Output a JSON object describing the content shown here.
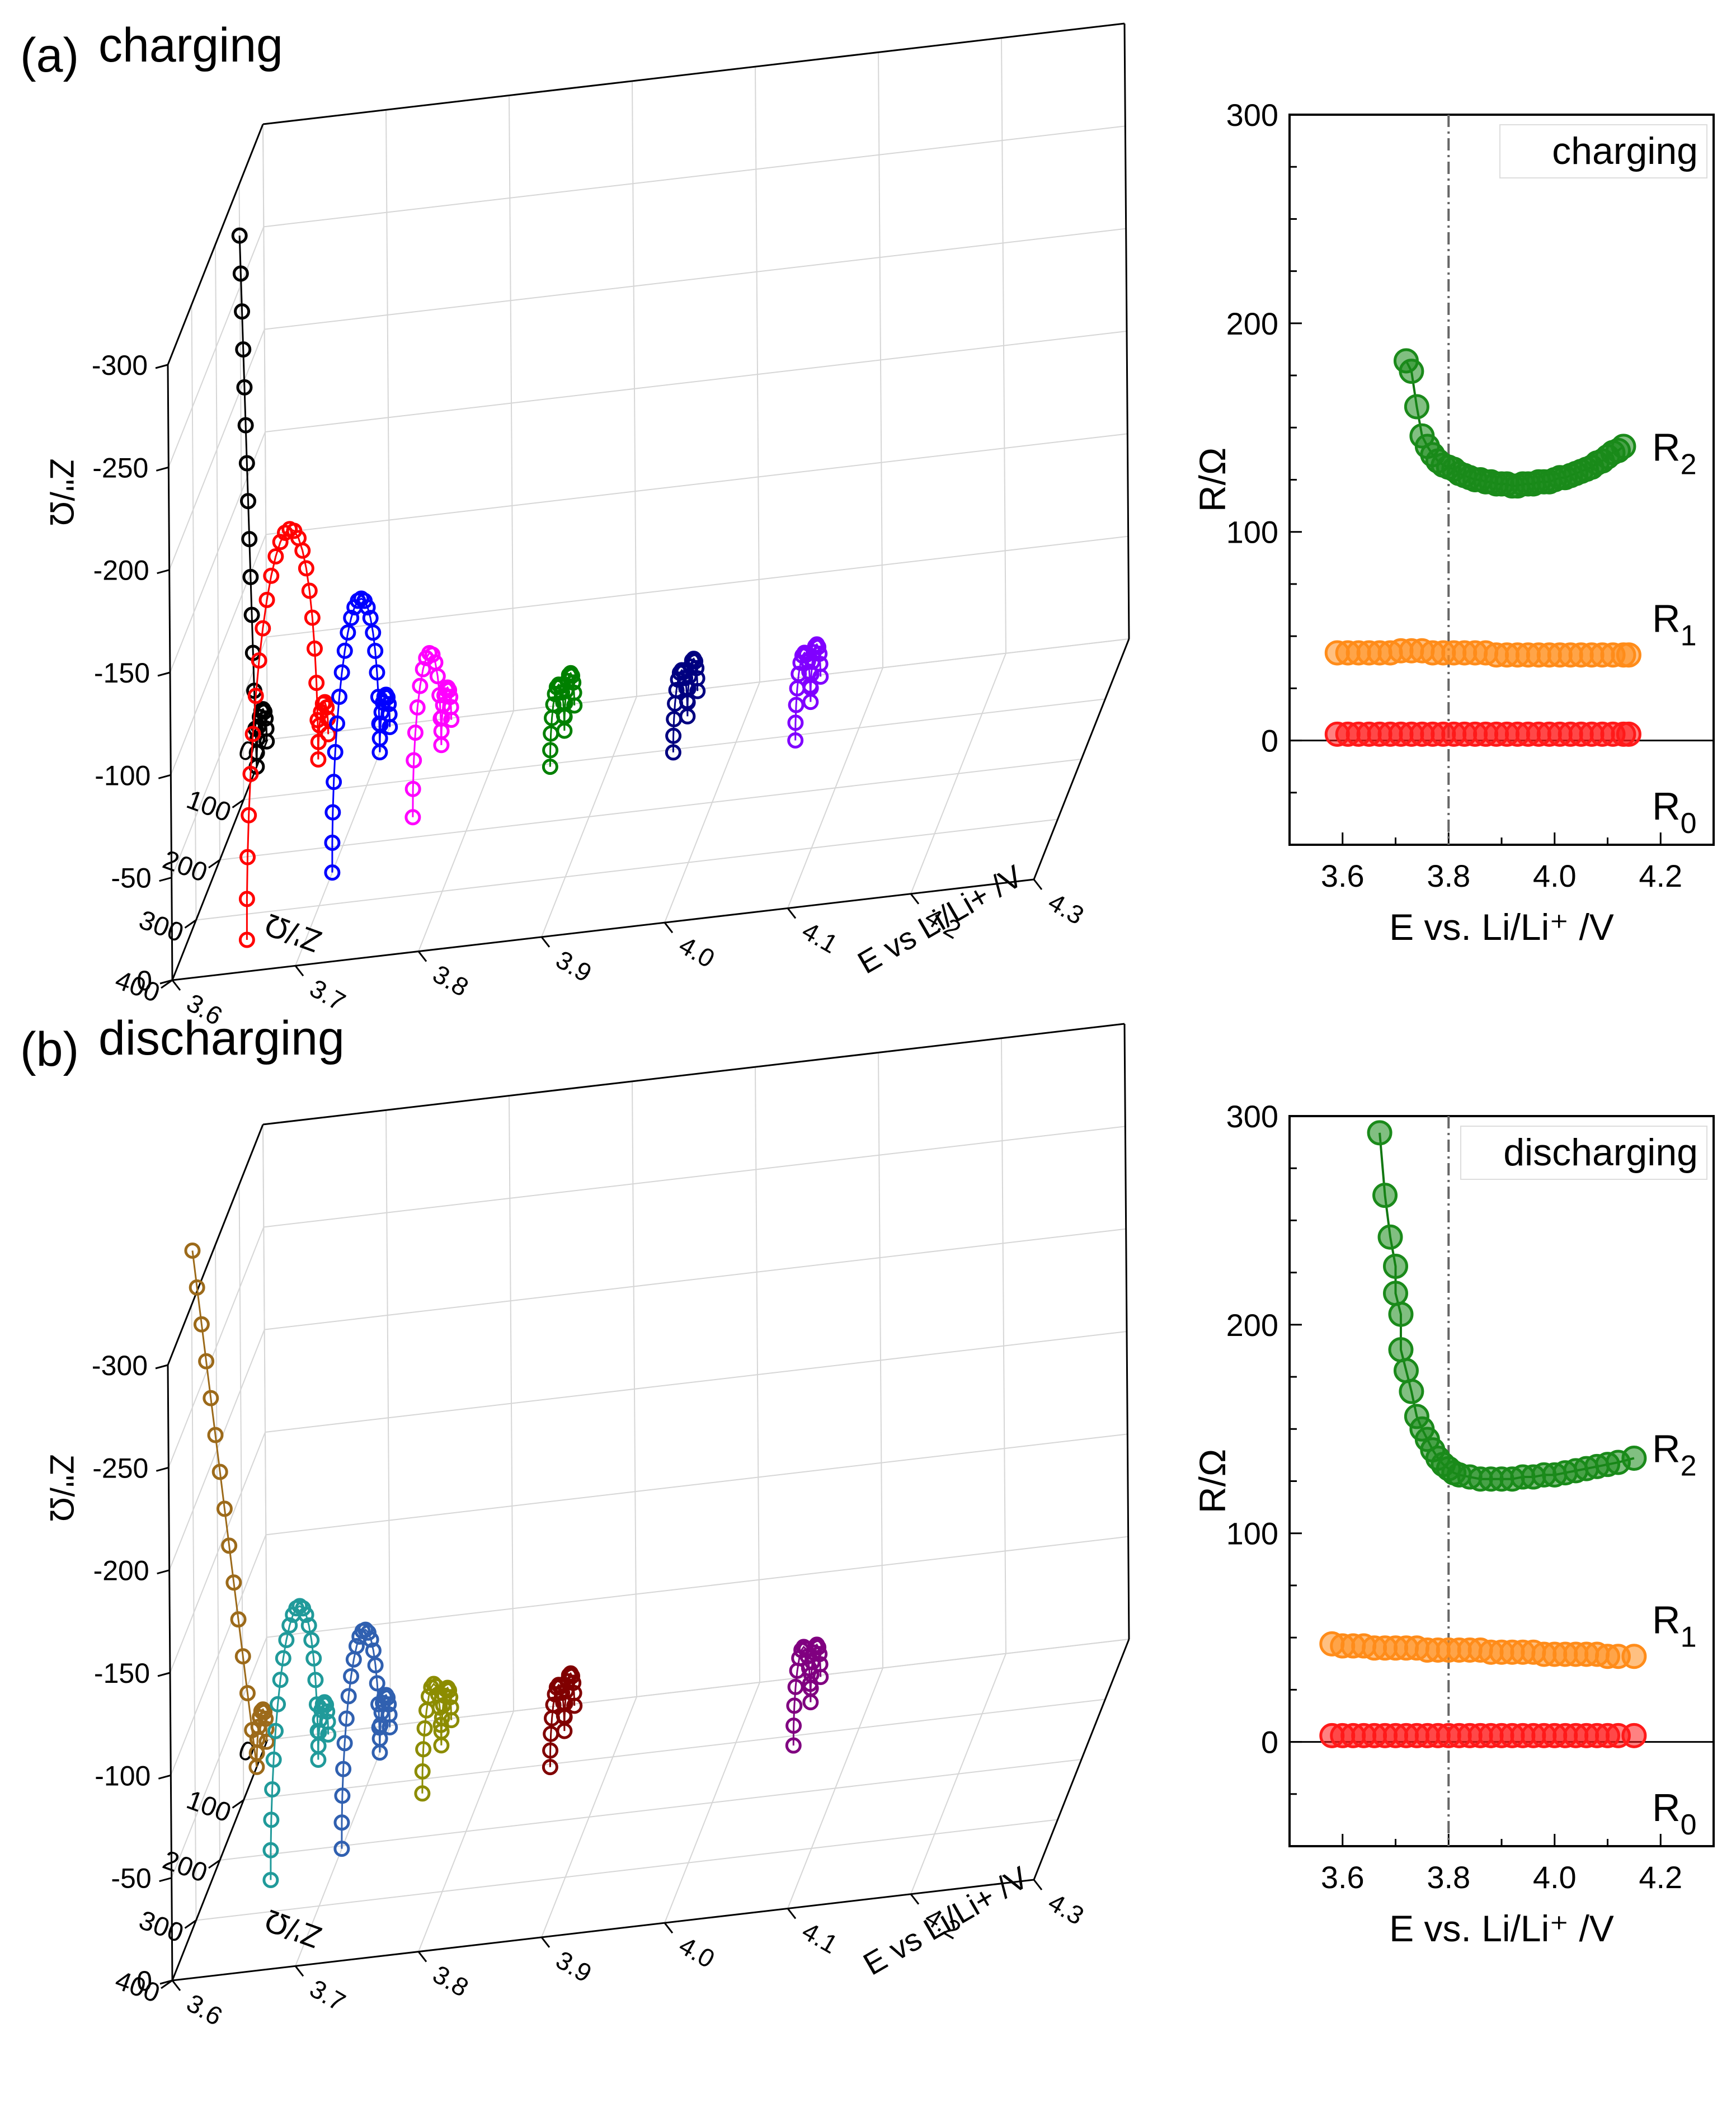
{
  "panels": {
    "a_label": "(a)",
    "a_title": "charging",
    "b_label": "(b)",
    "b_title": "discharging"
  },
  "chart_data": [
    {
      "id": "a3d",
      "type": "scatter",
      "subtype": "3d-nyquist",
      "title": "charging",
      "zlabel": "Z''/Ω",
      "ylabel": "Z'/Ω",
      "xlabel": "E vs Li/Li+ /V",
      "x_ticks": [
        "3.6",
        "3.7",
        "3.8",
        "3.9",
        "4.0",
        "4.1",
        "4.2",
        "4.3"
      ],
      "y_ticks": [
        "0",
        "100",
        "200",
        "300",
        "400"
      ],
      "z_ticks": [
        "0",
        "-50",
        "-100",
        "-150",
        "-200",
        "-250",
        "-300"
      ],
      "xlim": [
        3.6,
        4.3
      ],
      "ylim": [
        0,
        400
      ],
      "zlim": [
        0,
        -300
      ],
      "grid": true,
      "series": [
        {
          "E": 3.6,
          "color": "#000000",
          "R0": 3,
          "R1": 42,
          "tail_slope": 5.0,
          "tail_len": 55,
          "n_arc": 10,
          "n_tail": 14
        },
        {
          "E": 3.65,
          "color": "#ff0000",
          "R0": 3,
          "R1": 42,
          "arc2_r": 150,
          "n_arc": 8,
          "n_arc2": 24
        },
        {
          "E": 3.7,
          "color": "#0000ff",
          "R0": 3,
          "R1": 42,
          "arc2_r": 100,
          "n_arc": 10,
          "n_arc2": 22
        },
        {
          "E": 3.75,
          "color": "#ff00ff",
          "R0": 3,
          "R1": 42,
          "arc2_r": 60,
          "n_arc": 10,
          "n_arc2": 14
        },
        {
          "E": 3.85,
          "color": "#008000",
          "R0": 3,
          "R1": 42,
          "arc2_r": 30,
          "n_arc": 10,
          "n_arc2": 12
        },
        {
          "E": 3.95,
          "color": "#000080",
          "R0": 3,
          "R1": 42,
          "arc2_r": 30,
          "n_arc": 10,
          "n_arc2": 12
        },
        {
          "E": 4.05,
          "color": "#8000ff",
          "R0": 3,
          "R1": 42,
          "arc2_r": 32,
          "n_arc": 10,
          "n_arc2": 12
        }
      ]
    },
    {
      "id": "a2d",
      "type": "scatter",
      "title": "charging",
      "xlabel": "E vs. Li/Li⁺ /V",
      "ylabel": "R/Ω",
      "xlim": [
        3.5,
        4.3
      ],
      "ylim": [
        -50,
        300
      ],
      "x_ticks": [
        "3.6",
        "3.8",
        "4.0",
        "4.2"
      ],
      "y_ticks": [
        "0",
        "100",
        "200",
        "300"
      ],
      "vline_x": 3.8,
      "series": [
        {
          "name": "R2",
          "color": "#1a8a1a",
          "x": [
            3.72,
            3.73,
            3.74,
            3.75,
            3.76,
            3.77,
            3.78,
            3.79,
            3.8,
            3.81,
            3.82,
            3.83,
            3.84,
            3.85,
            3.86,
            3.87,
            3.88,
            3.89,
            3.9,
            3.91,
            3.92,
            3.93,
            3.94,
            3.95,
            3.96,
            3.97,
            3.98,
            3.99,
            4.0,
            4.01,
            4.02,
            4.03,
            4.04,
            4.05,
            4.06,
            4.07,
            4.08,
            4.09,
            4.1,
            4.11,
            4.12,
            4.13
          ],
          "y": [
            182,
            177,
            160,
            146,
            141,
            137,
            134,
            132,
            131,
            130,
            128,
            127,
            126,
            125,
            125,
            124,
            124,
            123,
            123,
            123,
            122,
            122,
            123,
            123,
            123,
            124,
            124,
            124,
            125,
            126,
            126,
            127,
            128,
            129,
            130,
            131,
            133,
            134,
            136,
            138,
            139,
            141
          ]
        },
        {
          "name": "R1",
          "color": "#ff8c1a",
          "x": [
            3.59,
            3.61,
            3.63,
            3.65,
            3.67,
            3.69,
            3.71,
            3.73,
            3.75,
            3.77,
            3.79,
            3.81,
            3.83,
            3.85,
            3.87,
            3.89,
            3.91,
            3.93,
            3.95,
            3.97,
            3.99,
            4.01,
            4.03,
            4.05,
            4.07,
            4.09,
            4.11,
            4.13,
            4.14
          ],
          "y": [
            42,
            42,
            42,
            42,
            42,
            42,
            43,
            43,
            43,
            42,
            42,
            42,
            42,
            42,
            42,
            41,
            41,
            41,
            41,
            41,
            41,
            41,
            41,
            41,
            41,
            41,
            41,
            41,
            41
          ]
        },
        {
          "name": "R0",
          "color": "#ff1a1a",
          "x": [
            3.59,
            3.61,
            3.63,
            3.65,
            3.67,
            3.69,
            3.71,
            3.73,
            3.75,
            3.77,
            3.79,
            3.81,
            3.83,
            3.85,
            3.87,
            3.89,
            3.91,
            3.93,
            3.95,
            3.97,
            3.99,
            4.01,
            4.03,
            4.05,
            4.07,
            4.09,
            4.11,
            4.13,
            4.14
          ],
          "y": [
            3,
            3,
            3,
            3,
            3,
            3,
            3,
            3,
            3,
            3,
            3,
            3,
            3,
            3,
            3,
            3,
            3,
            3,
            3,
            3,
            3,
            3,
            3,
            3,
            3,
            3,
            3,
            3,
            3
          ]
        }
      ],
      "labels": [
        {
          "base": "R",
          "sub": "2",
          "at_y": 140
        },
        {
          "base": "R",
          "sub": "1",
          "at_y": 58
        },
        {
          "base": "R",
          "sub": "0",
          "at_y": -32
        }
      ]
    },
    {
      "id": "b3d",
      "type": "scatter",
      "subtype": "3d-nyquist",
      "title": "discharging",
      "zlabel": "Z''/Ω",
      "ylabel": "Z'/Ω",
      "xlabel": "E vs Li/Li+ /V",
      "x_ticks": [
        "3.6",
        "3.7",
        "3.8",
        "3.9",
        "4.0",
        "4.1",
        "4.2",
        "4.3"
      ],
      "y_ticks": [
        "0",
        "100",
        "200",
        "300",
        "400"
      ],
      "z_ticks": [
        "0",
        "-50",
        "-100",
        "-150",
        "-200",
        "-250",
        "-300"
      ],
      "xlim": [
        3.6,
        4.3
      ],
      "ylim": [
        0,
        400
      ],
      "zlim": [
        0,
        -300
      ],
      "grid": true,
      "series": [
        {
          "E": 3.6,
          "color": "#9c6a1a",
          "R0": 3,
          "R1": 42,
          "tail_slope": 1.3,
          "tail_len": 250,
          "n_arc": 10,
          "n_tail": 14
        },
        {
          "E": 3.65,
          "color": "#209a9a",
          "R0": 3,
          "R1": 42,
          "arc2_r": 100,
          "n_arc": 10,
          "n_arc2": 22
        },
        {
          "E": 3.7,
          "color": "#3060b0",
          "R0": 3,
          "R1": 42,
          "arc2_r": 80,
          "n_arc": 10,
          "n_arc2": 20
        },
        {
          "E": 3.75,
          "color": "#8c8c00",
          "R0": 3,
          "R1": 42,
          "arc2_r": 40,
          "n_arc": 10,
          "n_arc2": 12
        },
        {
          "E": 3.85,
          "color": "#800000",
          "R0": 3,
          "R1": 42,
          "arc2_r": 30,
          "n_arc": 10,
          "n_arc2": 12
        },
        {
          "E": 4.05,
          "color": "#800080",
          "R0": 3,
          "R1": 42,
          "arc2_r": 36,
          "n_arc": 10,
          "n_arc2": 12
        }
      ]
    },
    {
      "id": "b2d",
      "type": "scatter",
      "title": "discharging",
      "xlabel": "E vs. Li/Li⁺ /V",
      "ylabel": "R/Ω",
      "xlim": [
        3.5,
        4.3
      ],
      "ylim": [
        -50,
        300
      ],
      "x_ticks": [
        "3.6",
        "3.8",
        "4.0",
        "4.2"
      ],
      "y_ticks": [
        "0",
        "100",
        "200",
        "300"
      ],
      "vline_x": 3.8,
      "series": [
        {
          "name": "R2",
          "color": "#1a8a1a",
          "x": [
            3.67,
            3.68,
            3.69,
            3.7,
            3.7,
            3.71,
            3.71,
            3.72,
            3.73,
            3.74,
            3.75,
            3.76,
            3.77,
            3.78,
            3.79,
            3.8,
            3.81,
            3.82,
            3.84,
            3.86,
            3.88,
            3.9,
            3.92,
            3.94,
            3.96,
            3.98,
            4.0,
            4.02,
            4.04,
            4.06,
            4.08,
            4.1,
            4.12,
            4.15
          ],
          "y": [
            292,
            262,
            242,
            228,
            215,
            205,
            188,
            178,
            168,
            156,
            150,
            145,
            140,
            136,
            133,
            131,
            129,
            128,
            127,
            126,
            126,
            126,
            126,
            127,
            127,
            128,
            128,
            129,
            130,
            131,
            132,
            133,
            134,
            136
          ]
        },
        {
          "name": "R1",
          "color": "#ff8c1a",
          "x": [
            3.58,
            3.6,
            3.62,
            3.64,
            3.66,
            3.68,
            3.7,
            3.72,
            3.74,
            3.76,
            3.78,
            3.8,
            3.82,
            3.84,
            3.86,
            3.88,
            3.9,
            3.92,
            3.94,
            3.96,
            3.98,
            4.0,
            4.02,
            4.04,
            4.06,
            4.08,
            4.1,
            4.12,
            4.15
          ],
          "y": [
            47,
            46,
            46,
            46,
            45,
            45,
            45,
            45,
            45,
            44,
            44,
            44,
            44,
            44,
            44,
            43,
            43,
            43,
            43,
            43,
            42,
            42,
            42,
            42,
            42,
            42,
            41,
            41,
            41
          ]
        },
        {
          "name": "R0",
          "color": "#ff1a1a",
          "x": [
            3.58,
            3.6,
            3.62,
            3.64,
            3.66,
            3.68,
            3.7,
            3.72,
            3.74,
            3.76,
            3.78,
            3.8,
            3.82,
            3.84,
            3.86,
            3.88,
            3.9,
            3.92,
            3.94,
            3.96,
            3.98,
            4.0,
            4.02,
            4.04,
            4.06,
            4.08,
            4.1,
            4.12,
            4.15
          ],
          "y": [
            3,
            3,
            3,
            3,
            3,
            3,
            3,
            3,
            3,
            3,
            3,
            3,
            3,
            3,
            3,
            3,
            3,
            3,
            3,
            3,
            3,
            3,
            3,
            3,
            3,
            3,
            3,
            3,
            3
          ]
        }
      ],
      "labels": [
        {
          "base": "R",
          "sub": "2",
          "at_y": 140
        },
        {
          "base": "R",
          "sub": "1",
          "at_y": 58
        },
        {
          "base": "R",
          "sub": "0",
          "at_y": -32
        }
      ]
    }
  ]
}
